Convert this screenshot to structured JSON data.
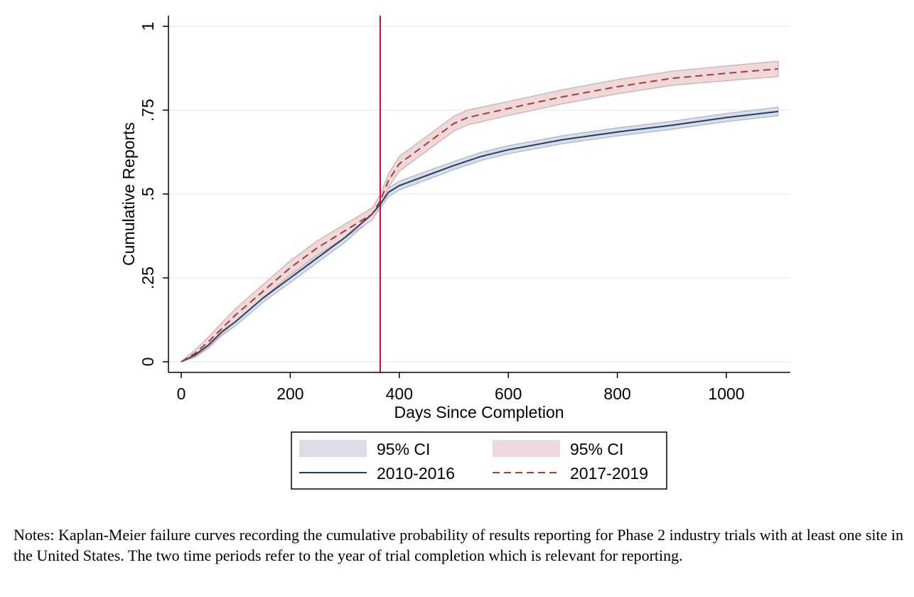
{
  "chart_data": {
    "type": "line",
    "title": "",
    "xlabel": "Days Since Completion",
    "ylabel": "Cumulative Reports",
    "xlim": [
      0,
      1095
    ],
    "ylim": [
      0,
      1
    ],
    "xticks": [
      0,
      200,
      400,
      600,
      800,
      1000
    ],
    "xtick_labels": [
      "0",
      "200",
      "400",
      "600",
      "800",
      "1000"
    ],
    "yticks": [
      0,
      0.25,
      0.5,
      0.75,
      1
    ],
    "ytick_labels": [
      "0",
      ".25",
      ".5",
      ".75",
      "1"
    ],
    "grid": true,
    "reference_line": {
      "x": 365,
      "color": "#c8102e"
    },
    "series": [
      {
        "name": "2010-2016",
        "style": "solid",
        "color": "#1f3f66",
        "ci_color": "#d9dde8",
        "ci_label": "95% CI",
        "x": [
          0,
          25,
          50,
          75,
          100,
          150,
          200,
          250,
          300,
          350,
          365,
          380,
          400,
          450,
          500,
          550,
          600,
          700,
          800,
          900,
          1000,
          1095
        ],
        "values": [
          0,
          0.02,
          0.05,
          0.09,
          0.12,
          0.19,
          0.25,
          0.31,
          0.37,
          0.44,
          0.47,
          0.505,
          0.525,
          0.555,
          0.585,
          0.612,
          0.632,
          0.662,
          0.685,
          0.705,
          0.728,
          0.746
        ],
        "ci_half_width": [
          0,
          0.007,
          0.009,
          0.011,
          0.012,
          0.013,
          0.014,
          0.014,
          0.014,
          0.013,
          0.013,
          0.013,
          0.013,
          0.013,
          0.012,
          0.012,
          0.012,
          0.012,
          0.012,
          0.012,
          0.012,
          0.013
        ]
      },
      {
        "name": "2017-2019",
        "style": "dashed",
        "color": "#a83a3a",
        "ci_color": "#eed9da",
        "ci_label": "95% CI",
        "x": [
          0,
          25,
          50,
          75,
          100,
          150,
          200,
          250,
          300,
          350,
          365,
          380,
          400,
          450,
          500,
          525,
          600,
          700,
          800,
          900,
          1000,
          1095
        ],
        "values": [
          0,
          0.025,
          0.06,
          0.1,
          0.14,
          0.21,
          0.28,
          0.34,
          0.39,
          0.44,
          0.48,
          0.54,
          0.59,
          0.65,
          0.71,
          0.728,
          0.755,
          0.79,
          0.82,
          0.845,
          0.86,
          0.873
        ],
        "ci_half_width": [
          0,
          0.01,
          0.014,
          0.017,
          0.019,
          0.02,
          0.021,
          0.021,
          0.02,
          0.018,
          0.018,
          0.02,
          0.022,
          0.022,
          0.022,
          0.022,
          0.021,
          0.021,
          0.021,
          0.021,
          0.022,
          0.023
        ]
      }
    ],
    "legend": {
      "position": "bottom",
      "entries": [
        {
          "label": "95% CI",
          "kind": "band",
          "series": 0
        },
        {
          "label": "95% CI",
          "kind": "band",
          "series": 1
        },
        {
          "label": "2010-2016",
          "kind": "line",
          "series": 0
        },
        {
          "label": "2017-2019",
          "kind": "line",
          "series": 1
        }
      ]
    }
  },
  "notes": "Notes: Kaplan-Meier failure curves recording the cumulative probability of results reporting for Phase 2 industry trials with at least one site in the United States. The two time periods refer to the year of trial completion which is relevant for reporting."
}
